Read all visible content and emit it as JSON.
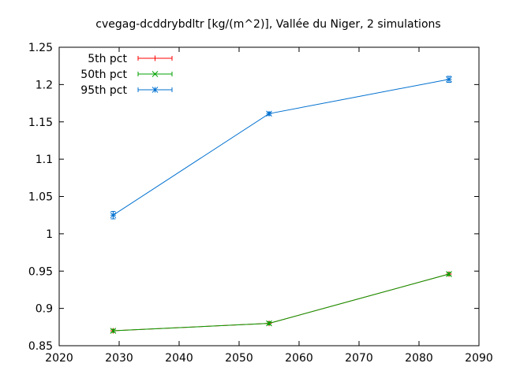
{
  "chart_data": {
    "type": "line",
    "title": "cvegag-dcddrybdltr [kg/(m^2)], Vallée du Niger, 2 simulations",
    "xlabel": "",
    "ylabel": "",
    "xlim": [
      2020,
      2090
    ],
    "ylim": [
      0.85,
      1.25
    ],
    "x_ticks": [
      2020,
      2030,
      2040,
      2050,
      2060,
      2070,
      2080,
      2090
    ],
    "x_tick_labels": [
      "2020",
      "2030",
      "2040",
      "2050",
      "2060",
      "2070",
      "2080",
      "2090"
    ],
    "y_ticks": [
      0.85,
      0.9,
      0.95,
      1.0,
      1.05,
      1.1,
      1.15,
      1.2,
      1.25
    ],
    "y_tick_labels": [
      "0.85",
      "0.9",
      "0.95",
      "1",
      "1.05",
      "1.1",
      "1.15",
      "1.2",
      "1.25"
    ],
    "grid": false,
    "legend_position": "top-left",
    "x": [
      2029,
      2055,
      2085
    ],
    "series": [
      {
        "name": "5th pct",
        "color": "#ff0000",
        "marker": "plus",
        "values": [
          0.87,
          0.88,
          0.946
        ],
        "errors": [
          0.002,
          0.002,
          0.002
        ]
      },
      {
        "name": "50th pct",
        "color": "#00a000",
        "marker": "cross",
        "values": [
          0.87,
          0.88,
          0.946
        ],
        "errors": [
          0.002,
          0.002,
          0.002
        ]
      },
      {
        "name": "95th pct",
        "color": "#0070d0",
        "marker": "star",
        "values": [
          1.025,
          1.161,
          1.207
        ],
        "errors": [
          0.005,
          0.002,
          0.004
        ]
      }
    ]
  }
}
